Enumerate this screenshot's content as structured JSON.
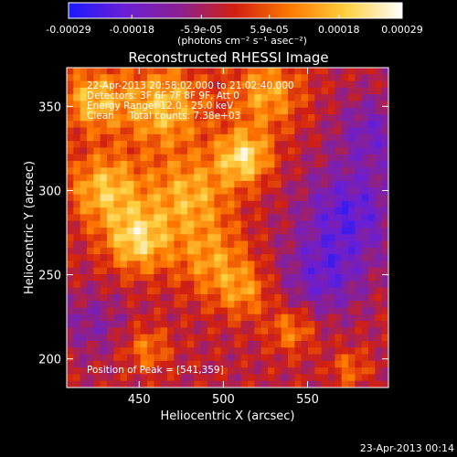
{
  "chart_data": {
    "type": "heatmap",
    "title": "Reconstructed RHESSI Image",
    "xlabel": "Heliocentric X (arcsec)",
    "ylabel": "Heliocentric Y (arcsec)",
    "xlim": [
      407,
      598
    ],
    "ylim": [
      183,
      373
    ],
    "x_ticks": [
      450,
      500,
      550
    ],
    "y_ticks": [
      200,
      250,
      300,
      350
    ],
    "grid": false,
    "colorbar": {
      "position": "top",
      "range": [
        -0.00029,
        0.00029
      ],
      "tick_labels": [
        "-0.00029",
        "-0.00018",
        "-5.9e-05",
        "5.9e-05",
        "0.00018",
        "0.00029"
      ],
      "tick_values": [
        -0.00029,
        -0.00018,
        -5.9e-05,
        5.9e-05,
        0.00018,
        0.00029
      ],
      "unit_label": "(photons cm⁻² s⁻¹ asec⁻²)",
      "colors": [
        "#1a1aff",
        "#6a1fd6",
        "#8a2090",
        "#d22010",
        "#ff7a00",
        "#ffd040",
        "#ffffff"
      ]
    },
    "grid_size": [
      48,
      48
    ],
    "blobs": [
      {
        "x": 0.55,
        "y": 0.72,
        "amp": 1.0,
        "sigma": 0.06
      },
      {
        "x": 0.22,
        "y": 0.46,
        "amp": 0.95,
        "sigma": 0.07
      },
      {
        "x": 0.12,
        "y": 0.62,
        "amp": 0.85,
        "sigma": 0.08
      },
      {
        "x": 0.38,
        "y": 0.6,
        "amp": 0.75,
        "sigma": 0.09
      },
      {
        "x": 0.3,
        "y": 0.88,
        "amp": 0.85,
        "sigma": 0.09
      },
      {
        "x": 0.62,
        "y": 0.92,
        "amp": 0.7,
        "sigma": 0.08
      },
      {
        "x": 0.08,
        "y": 0.9,
        "amp": 0.8,
        "sigma": 0.07
      },
      {
        "x": 0.45,
        "y": 0.4,
        "amp": 0.6,
        "sigma": 0.08
      },
      {
        "x": 0.55,
        "y": 0.3,
        "amp": 0.55,
        "sigma": 0.06
      },
      {
        "x": 0.7,
        "y": 0.18,
        "amp": 0.55,
        "sigma": 0.05
      },
      {
        "x": 0.25,
        "y": 0.12,
        "amp": 0.5,
        "sigma": 0.05
      },
      {
        "x": 0.88,
        "y": 0.06,
        "amp": 0.45,
        "sigma": 0.04
      },
      {
        "x": 0.88,
        "y": 0.55,
        "amp": -0.7,
        "sigma": 0.1
      },
      {
        "x": 0.8,
        "y": 0.35,
        "amp": -0.6,
        "sigma": 0.09
      },
      {
        "x": 0.95,
        "y": 0.8,
        "amp": -0.5,
        "sigma": 0.08
      },
      {
        "x": 0.08,
        "y": 0.2,
        "amp": -0.35,
        "sigma": 0.07
      }
    ],
    "annotations": [
      "22-Apr-2013 20:58:02.000 to 21:02:40.000",
      "Detectors: 3F 6F 7F 8F 9F, Att 0",
      "Energy Range: 12.0 - 25.0 keV",
      "Clean     Total counts: 7.38e+03",
      "Position of Peak = [541,359]"
    ],
    "footer_date": "23-Apr-2013 00:14"
  }
}
